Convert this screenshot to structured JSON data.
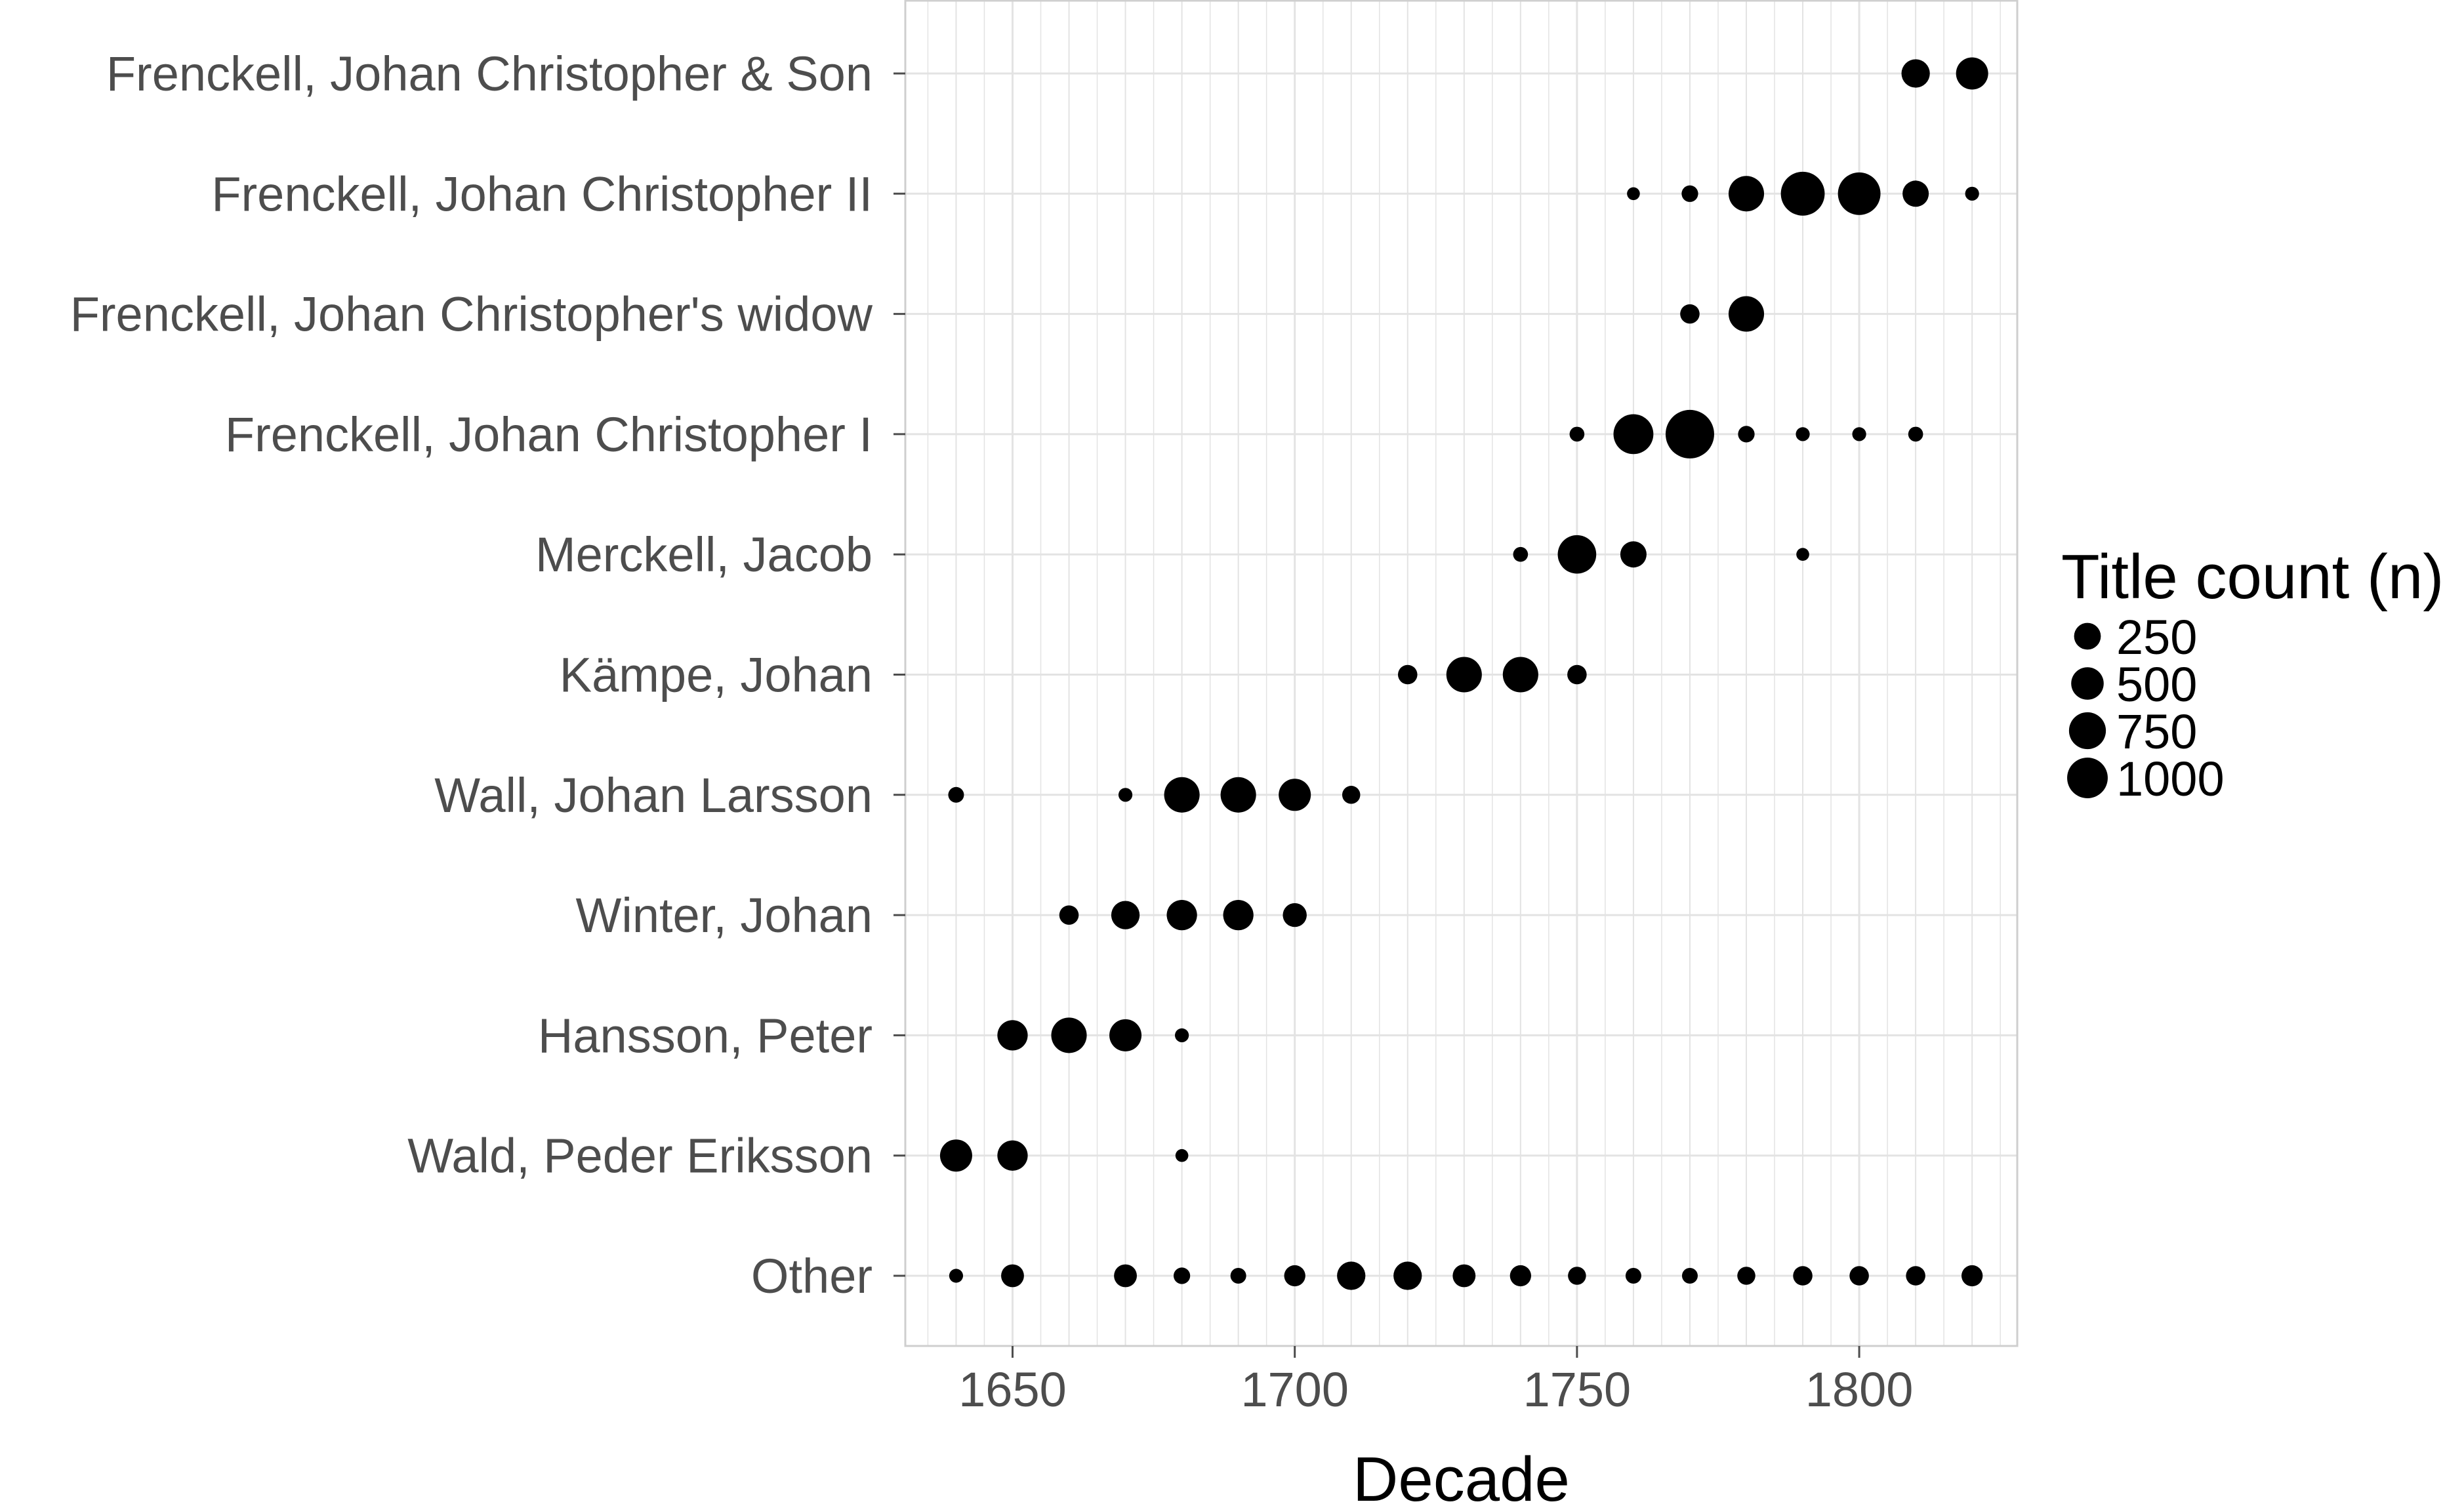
{
  "chart_data": {
    "type": "scatter",
    "xlabel": "Decade",
    "ylabel": "",
    "xlim": [
      1631,
      1828
    ],
    "xticks": [
      1650,
      1700,
      1750,
      1800
    ],
    "grid": true,
    "categories": [
      "Frenckell, Johan Christopher & Son",
      "Frenckell, Johan Christopher II",
      "Frenckell, Johan Christopher's widow",
      "Frenckell, Johan Christopher I",
      "Merckell, Jacob",
      "Kämpe, Johan",
      "Wall, Johan Larsson",
      "Winter, Johan",
      "Hansson, Peter",
      "Wald, Peder Eriksson",
      "Other"
    ],
    "points": [
      {
        "category": "Frenckell, Johan Christopher & Son",
        "x": 1810,
        "n": 300
      },
      {
        "category": "Frenckell, Johan Christopher & Son",
        "x": 1820,
        "n": 400
      },
      {
        "category": "Frenckell, Johan Christopher II",
        "x": 1760,
        "n": 40
      },
      {
        "category": "Frenckell, Johan Christopher II",
        "x": 1770,
        "n": 80
      },
      {
        "category": "Frenckell, Johan Christopher II",
        "x": 1780,
        "n": 500
      },
      {
        "category": "Frenckell, Johan Christopher II",
        "x": 1790,
        "n": 800
      },
      {
        "category": "Frenckell, Johan Christopher II",
        "x": 1800,
        "n": 750
      },
      {
        "category": "Frenckell, Johan Christopher II",
        "x": 1810,
        "n": 250
      },
      {
        "category": "Frenckell, Johan Christopher II",
        "x": 1820,
        "n": 50
      },
      {
        "category": "Frenckell, Johan Christopher's widow",
        "x": 1770,
        "n": 120
      },
      {
        "category": "Frenckell, Johan Christopher's widow",
        "x": 1780,
        "n": 500
      },
      {
        "category": "Frenckell, Johan Christopher I",
        "x": 1750,
        "n": 60
      },
      {
        "category": "Frenckell, Johan Christopher I",
        "x": 1760,
        "n": 650
      },
      {
        "category": "Frenckell, Johan Christopher I",
        "x": 1770,
        "n": 1000
      },
      {
        "category": "Frenckell, Johan Christopher I",
        "x": 1780,
        "n": 80
      },
      {
        "category": "Frenckell, Johan Christopher I",
        "x": 1790,
        "n": 50
      },
      {
        "category": "Frenckell, Johan Christopher I",
        "x": 1800,
        "n": 50
      },
      {
        "category": "Frenckell, Johan Christopher I",
        "x": 1810,
        "n": 60
      },
      {
        "category": "Merckell, Jacob",
        "x": 1740,
        "n": 60
      },
      {
        "category": "Merckell, Jacob",
        "x": 1750,
        "n": 600
      },
      {
        "category": "Merckell, Jacob",
        "x": 1760,
        "n": 250
      },
      {
        "category": "Merckell, Jacob",
        "x": 1790,
        "n": 40
      },
      {
        "category": "Kämpe, Johan",
        "x": 1720,
        "n": 120
      },
      {
        "category": "Kämpe, Johan",
        "x": 1730,
        "n": 500
      },
      {
        "category": "Kämpe, Johan",
        "x": 1740,
        "n": 500
      },
      {
        "category": "Kämpe, Johan",
        "x": 1750,
        "n": 120
      },
      {
        "category": "Wall, Johan Larsson",
        "x": 1640,
        "n": 70
      },
      {
        "category": "Wall, Johan Larsson",
        "x": 1670,
        "n": 50
      },
      {
        "category": "Wall, Johan Larsson",
        "x": 1680,
        "n": 500
      },
      {
        "category": "Wall, Johan Larsson",
        "x": 1690,
        "n": 500
      },
      {
        "category": "Wall, Johan Larsson",
        "x": 1700,
        "n": 400
      },
      {
        "category": "Wall, Johan Larsson",
        "x": 1710,
        "n": 100
      },
      {
        "category": "Winter, Johan",
        "x": 1660,
        "n": 120
      },
      {
        "category": "Winter, Johan",
        "x": 1670,
        "n": 300
      },
      {
        "category": "Winter, Johan",
        "x": 1680,
        "n": 350
      },
      {
        "category": "Winter, Johan",
        "x": 1690,
        "n": 350
      },
      {
        "category": "Winter, Johan",
        "x": 1700,
        "n": 200
      },
      {
        "category": "Hansson, Peter",
        "x": 1650,
        "n": 350
      },
      {
        "category": "Hansson, Peter",
        "x": 1660,
        "n": 500
      },
      {
        "category": "Hansson, Peter",
        "x": 1670,
        "n": 400
      },
      {
        "category": "Hansson, Peter",
        "x": 1680,
        "n": 50
      },
      {
        "category": "Wald, Peder Eriksson",
        "x": 1640,
        "n": 400
      },
      {
        "category": "Wald, Peder Eriksson",
        "x": 1650,
        "n": 350
      },
      {
        "category": "Wald, Peder Eriksson",
        "x": 1680,
        "n": 40
      },
      {
        "category": "Other",
        "x": 1640,
        "n": 50
      },
      {
        "category": "Other",
        "x": 1650,
        "n": 180
      },
      {
        "category": "Other",
        "x": 1670,
        "n": 180
      },
      {
        "category": "Other",
        "x": 1680,
        "n": 80
      },
      {
        "category": "Other",
        "x": 1690,
        "n": 70
      },
      {
        "category": "Other",
        "x": 1700,
        "n": 150
      },
      {
        "category": "Other",
        "x": 1710,
        "n": 300
      },
      {
        "category": "Other",
        "x": 1720,
        "n": 300
      },
      {
        "category": "Other",
        "x": 1730,
        "n": 180
      },
      {
        "category": "Other",
        "x": 1740,
        "n": 150
      },
      {
        "category": "Other",
        "x": 1750,
        "n": 100
      },
      {
        "category": "Other",
        "x": 1760,
        "n": 70
      },
      {
        "category": "Other",
        "x": 1770,
        "n": 70
      },
      {
        "category": "Other",
        "x": 1780,
        "n": 100
      },
      {
        "category": "Other",
        "x": 1790,
        "n": 120
      },
      {
        "category": "Other",
        "x": 1800,
        "n": 120
      },
      {
        "category": "Other",
        "x": 1810,
        "n": 120
      },
      {
        "category": "Other",
        "x": 1820,
        "n": 150
      }
    ],
    "legend": {
      "title": "Title count (n)",
      "position": "right",
      "entries": [
        {
          "label": "250",
          "n": 250
        },
        {
          "label": "500",
          "n": 500
        },
        {
          "label": "750",
          "n": 750
        },
        {
          "label": "1000",
          "n": 1000
        }
      ]
    },
    "colors": {
      "point": "#000000",
      "grid": "#e3e3e3",
      "panel_border": "#cfcfcf",
      "axis_text": "#4d4d4d"
    }
  }
}
